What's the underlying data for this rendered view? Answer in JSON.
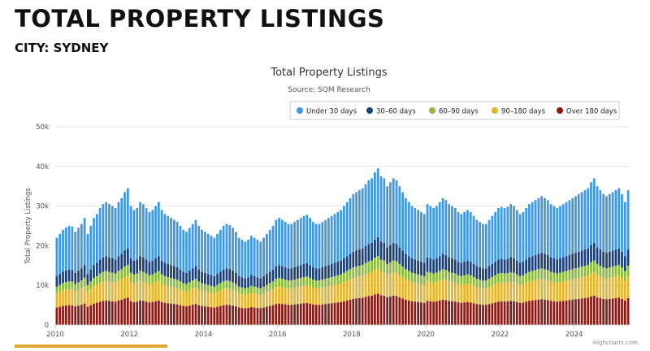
{
  "page": {
    "title": "TOTAL PROPERTY LISTINGS",
    "city": "CITY: SYDNEY"
  },
  "colors": {
    "under30": "#3f97e6",
    "d30_60": "#1b3f7a",
    "d60_90": "#8cbb3a",
    "d90_180": "#e8b52a",
    "over180": "#8c1a14",
    "accent": "#e0a82e"
  },
  "chart_data": {
    "type": "bar",
    "stacked": true,
    "title": "Total Property Listings",
    "subtitle": "Source: SQM Research",
    "ylabel": "Total Property Listings",
    "ylim": [
      0,
      50000
    ],
    "y_ticks": [
      "0",
      "10k",
      "20k",
      "30k",
      "40k",
      "50k"
    ],
    "x_tick_labels": [
      "2010",
      "2012",
      "2014",
      "2016",
      "2018",
      "2020",
      "2022",
      "2024"
    ],
    "x_range": [
      "2010-01",
      "2025-06"
    ],
    "months": [
      "2010-01",
      "2010-02",
      "2010-03",
      "2010-04",
      "2010-05",
      "2010-06",
      "2010-07",
      "2010-08",
      "2010-09",
      "2010-10",
      "2010-11",
      "2010-12",
      "2011-01",
      "2011-02",
      "2011-03",
      "2011-04",
      "2011-05",
      "2011-06",
      "2011-07",
      "2011-08",
      "2011-09",
      "2011-10",
      "2011-11",
      "2011-12",
      "2012-01",
      "2012-02",
      "2012-03",
      "2012-04",
      "2012-05",
      "2012-06",
      "2012-07",
      "2012-08",
      "2012-09",
      "2012-10",
      "2012-11",
      "2012-12",
      "2013-01",
      "2013-02",
      "2013-03",
      "2013-04",
      "2013-05",
      "2013-06",
      "2013-07",
      "2013-08",
      "2013-09",
      "2013-10",
      "2013-11",
      "2013-12",
      "2014-01",
      "2014-02",
      "2014-03",
      "2014-04",
      "2014-05",
      "2014-06",
      "2014-07",
      "2014-08",
      "2014-09",
      "2014-10",
      "2014-11",
      "2014-12",
      "2015-01",
      "2015-02",
      "2015-03",
      "2015-04",
      "2015-05",
      "2015-06",
      "2015-07",
      "2015-08",
      "2015-09",
      "2015-10",
      "2015-11",
      "2015-12",
      "2016-01",
      "2016-02",
      "2016-03",
      "2016-04",
      "2016-05",
      "2016-06",
      "2016-07",
      "2016-08",
      "2016-09",
      "2016-10",
      "2016-11",
      "2016-12",
      "2017-01",
      "2017-02",
      "2017-03",
      "2017-04",
      "2017-05",
      "2017-06",
      "2017-07",
      "2017-08",
      "2017-09",
      "2017-10",
      "2017-11",
      "2017-12",
      "2018-01",
      "2018-02",
      "2018-03",
      "2018-04",
      "2018-05",
      "2018-06",
      "2018-07",
      "2018-08",
      "2018-09",
      "2018-10",
      "2018-11",
      "2018-12",
      "2019-01",
      "2019-02",
      "2019-03",
      "2019-04",
      "2019-05",
      "2019-06",
      "2019-07",
      "2019-08",
      "2019-09",
      "2019-10",
      "2019-11",
      "2019-12",
      "2020-01",
      "2020-02",
      "2020-03",
      "2020-04",
      "2020-05",
      "2020-06",
      "2020-07",
      "2020-08",
      "2020-09",
      "2020-10",
      "2020-11",
      "2020-12",
      "2021-01",
      "2021-02",
      "2021-03",
      "2021-04",
      "2021-05",
      "2021-06",
      "2021-07",
      "2021-08",
      "2021-09",
      "2021-10",
      "2021-11",
      "2021-12",
      "2022-01",
      "2022-02",
      "2022-03",
      "2022-04",
      "2022-05",
      "2022-06",
      "2022-07",
      "2022-08",
      "2022-09",
      "2022-10",
      "2022-11",
      "2022-12",
      "2023-01",
      "2023-02",
      "2023-03",
      "2023-04",
      "2023-05",
      "2023-06",
      "2023-07",
      "2023-08",
      "2023-09",
      "2023-10",
      "2023-11",
      "2023-12",
      "2024-01",
      "2024-02",
      "2024-03",
      "2024-04",
      "2024-05",
      "2024-06",
      "2024-07",
      "2024-08",
      "2024-09",
      "2024-10",
      "2024-11",
      "2024-12",
      "2025-01",
      "2025-02",
      "2025-03",
      "2025-04",
      "2025-05",
      "2025-06"
    ],
    "totals": [
      22000,
      23000,
      24000,
      24600,
      25000,
      24800,
      23500,
      24500,
      25500,
      27000,
      23000,
      25000,
      27000,
      28000,
      29500,
      30500,
      31000,
      30500,
      30000,
      29500,
      31000,
      32000,
      33500,
      34500,
      30000,
      29000,
      29500,
      31000,
      30500,
      29500,
      28500,
      29000,
      30000,
      31000,
      29000,
      28000,
      27500,
      27000,
      26500,
      26000,
      25000,
      24000,
      23500,
      24500,
      25500,
      26500,
      25000,
      24000,
      23500,
      23000,
      22500,
      22000,
      23000,
      24000,
      25000,
      25500,
      25200,
      24500,
      23500,
      22000,
      21500,
      21000,
      21500,
      22500,
      22000,
      21500,
      21000,
      22000,
      23000,
      24000,
      25000,
      26500,
      27000,
      26500,
      26000,
      25500,
      25500,
      26000,
      26500,
      27000,
      27500,
      27800,
      27000,
      26000,
      25500,
      25500,
      26000,
      26500,
      27000,
      27500,
      28000,
      28500,
      29000,
      30000,
      31000,
      32000,
      33000,
      33500,
      34000,
      34500,
      35500,
      36500,
      37000,
      38500,
      39500,
      37500,
      37000,
      35000,
      36000,
      37000,
      36500,
      35000,
      33500,
      32000,
      31000,
      30000,
      29500,
      29000,
      28500,
      28000,
      30500,
      30000,
      29500,
      30000,
      31000,
      32000,
      31500,
      30500,
      30000,
      29500,
      28500,
      28000,
      28500,
      29000,
      28500,
      27500,
      26500,
      26000,
      25500,
      25500,
      26500,
      27500,
      28500,
      29500,
      29800,
      29500,
      29800,
      30500,
      30000,
      29000,
      28000,
      28500,
      29500,
      30500,
      31000,
      31500,
      32000,
      32500,
      32000,
      31500,
      30500,
      30000,
      29500,
      30000,
      30500,
      31000,
      31500,
      32000,
      32500,
      33000,
      33500,
      34000,
      34500,
      36000,
      37000,
      35000,
      34000,
      33000,
      32500,
      33000,
      33500,
      34000,
      34500,
      33000,
      31000,
      34000
    ],
    "series": [
      {
        "name": "Under 30 days",
        "color_key": "under30",
        "share": 0.44
      },
      {
        "name": "30–60 days",
        "color_key": "d30_60",
        "share": 0.12
      },
      {
        "name": "60–90 days",
        "color_key": "d60_90",
        "share": 0.08
      },
      {
        "name": "90–180 days",
        "color_key": "d90_180",
        "share": 0.16
      },
      {
        "name": "Over 180 days",
        "color_key": "over180",
        "share": 0.2
      }
    ],
    "legend_position": "top-right",
    "grid": true,
    "credits": "Highcharts.com"
  }
}
